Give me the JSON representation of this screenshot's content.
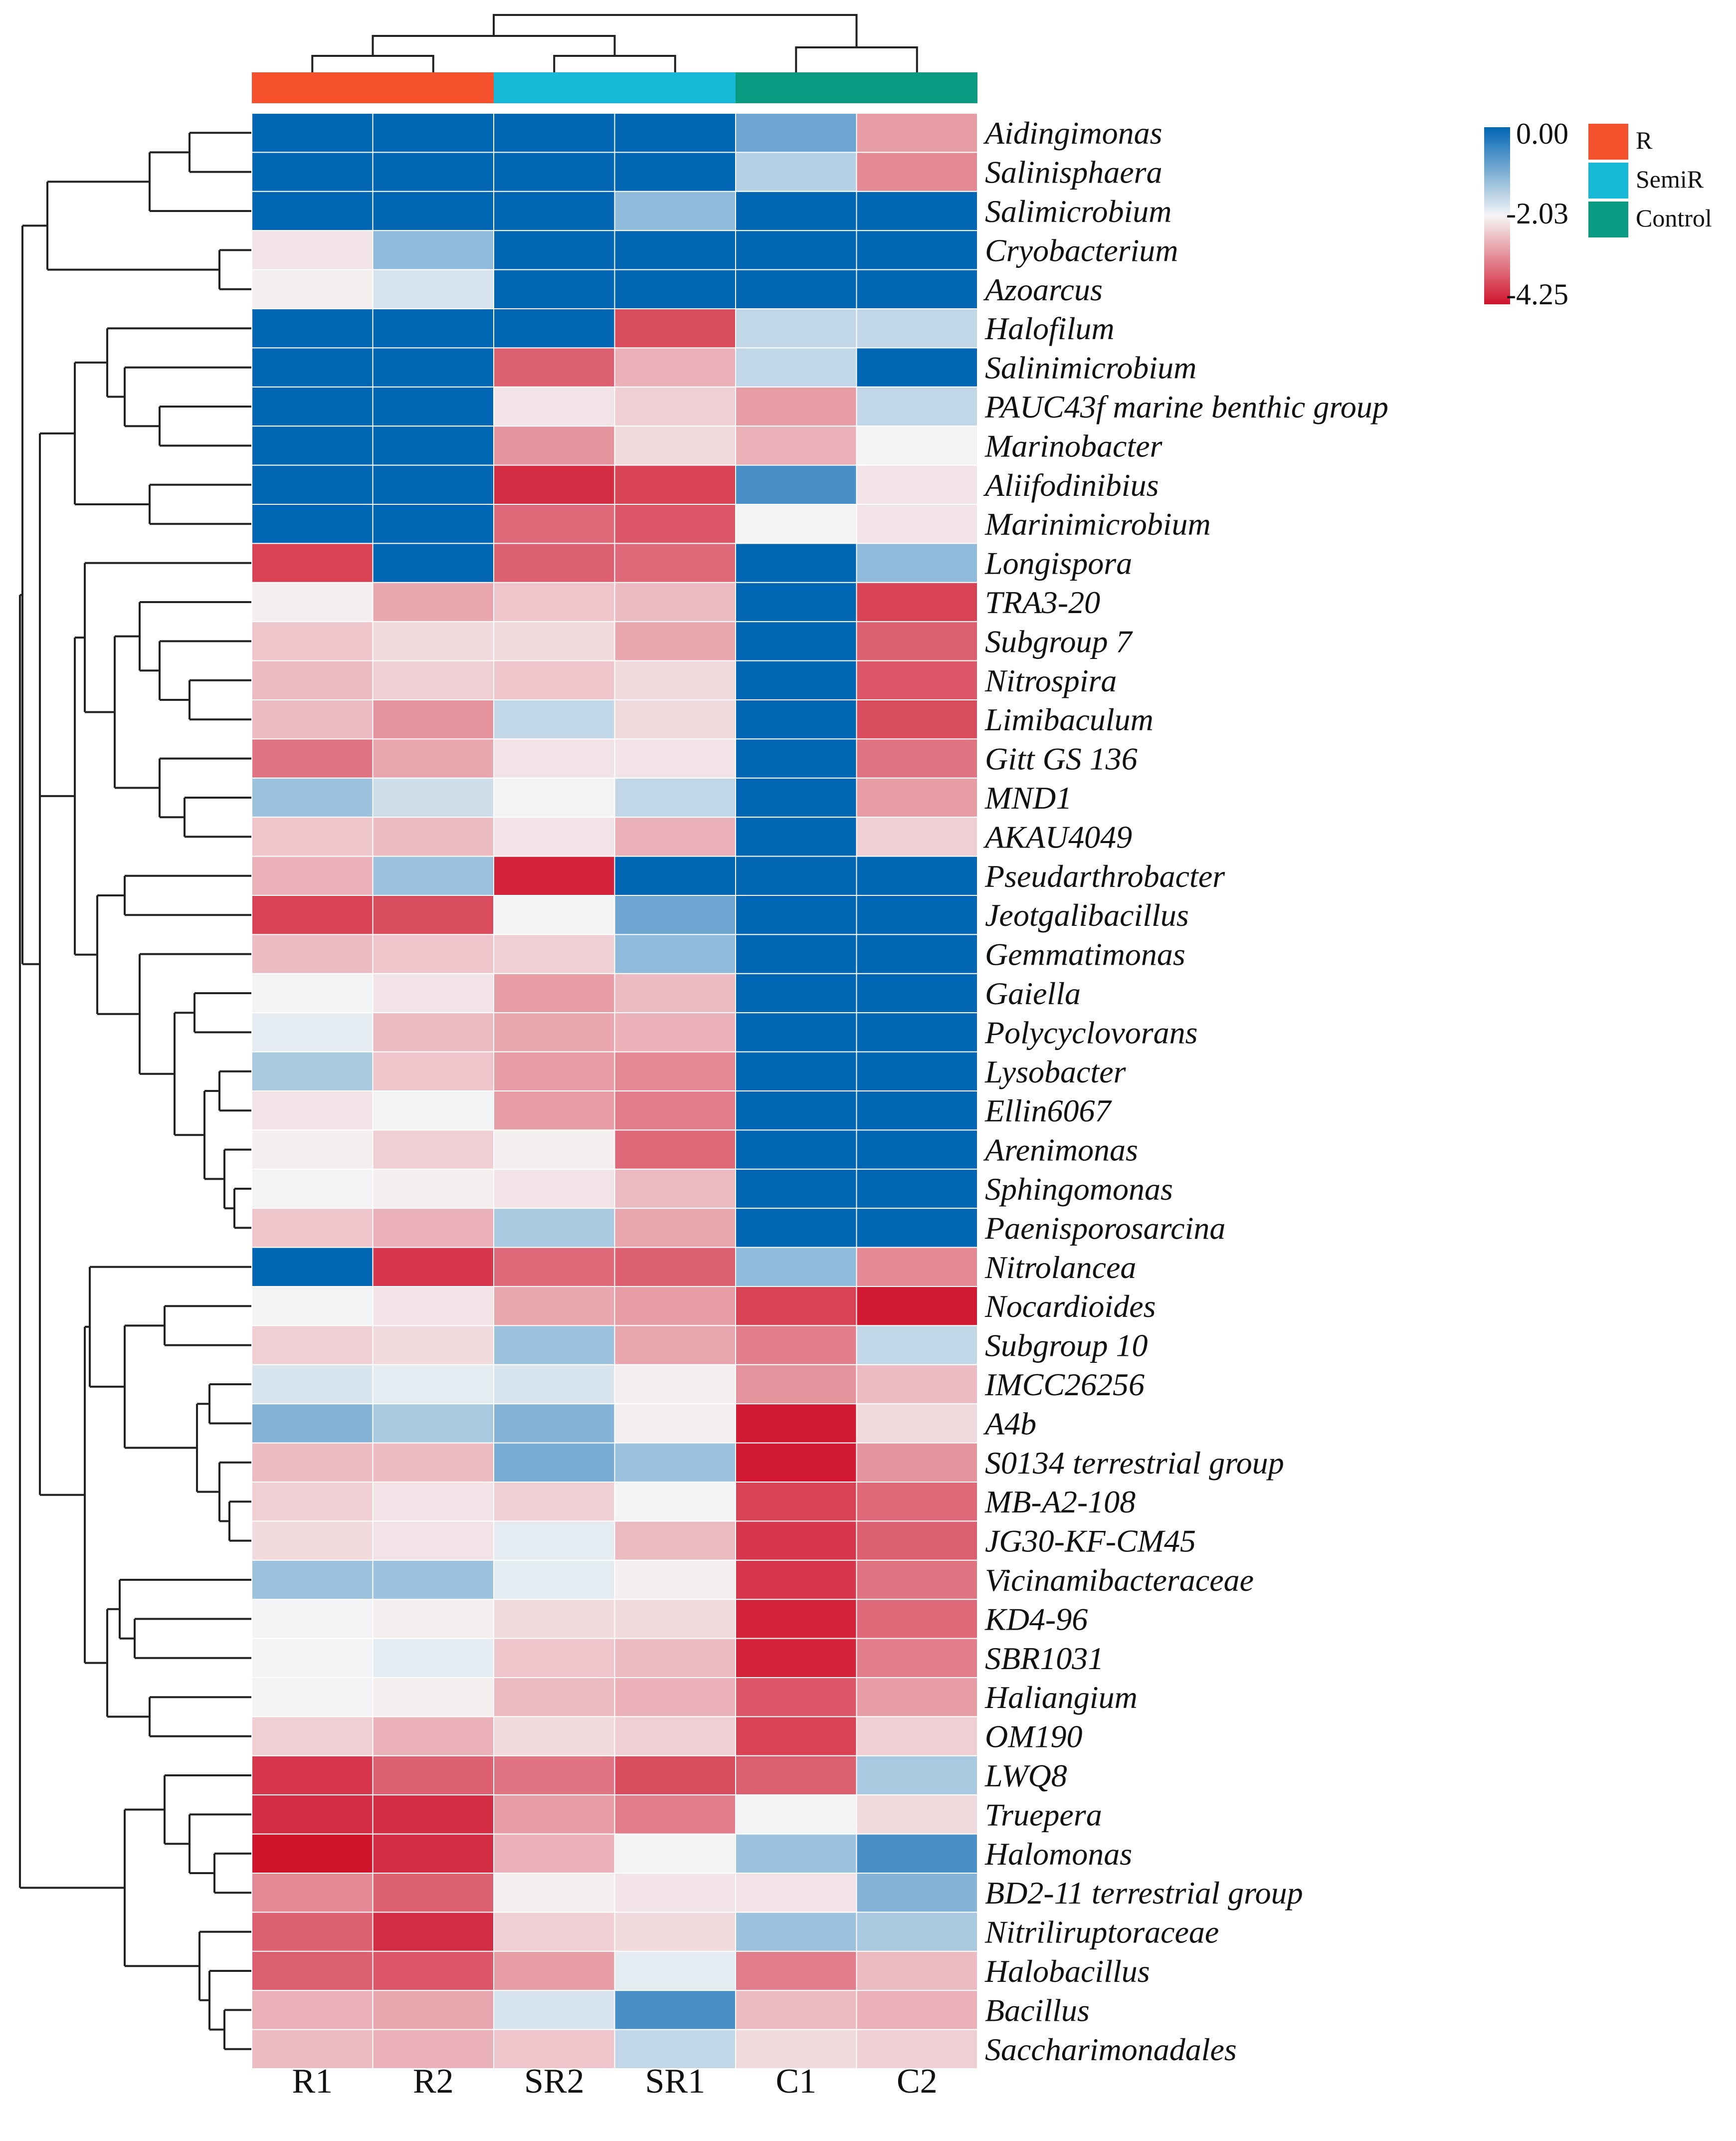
{
  "chart_data": {
    "type": "heatmap",
    "title": "",
    "columns": [
      "R1",
      "R2",
      "SR2",
      "SR1",
      "C1",
      "C2"
    ],
    "column_groups": [
      "R",
      "R",
      "SemiR",
      "SemiR",
      "Control",
      "Control"
    ],
    "groups": [
      {
        "name": "R",
        "color": "#f4512c"
      },
      {
        "name": "SemiR",
        "color": "#18b9d6"
      },
      {
        "name": "Control",
        "color": "#0a9a82"
      }
    ],
    "color_scale": {
      "min": -4.25,
      "mid": -2.03,
      "max": 0.0,
      "min_label": "-4.25",
      "mid_label": "-2.03",
      "max_label": "0.00",
      "min_color": "#d0142c",
      "mid_color": "#f5f5f5",
      "max_color": "#0066b3"
    },
    "rows": [
      {
        "name": "Aidingimonas",
        "values": [
          0.0,
          0.0,
          0.0,
          0.0,
          -0.9,
          -2.9
        ]
      },
      {
        "name": "Salinisphaera",
        "values": [
          0.0,
          0.0,
          0.0,
          0.0,
          -1.5,
          -3.1
        ]
      },
      {
        "name": "Salimicrobium",
        "values": [
          0.0,
          0.0,
          0.0,
          -1.2,
          0.0,
          0.0
        ]
      },
      {
        "name": "Cryobacterium",
        "values": [
          -2.2,
          -1.2,
          0.0,
          0.0,
          0.0,
          0.0
        ]
      },
      {
        "name": "Azoarcus",
        "values": [
          -2.1,
          -1.8,
          0.0,
          0.0,
          0.0,
          0.0
        ]
      },
      {
        "name": "Halofilum",
        "values": [
          0.0,
          0.0,
          0.0,
          -3.7,
          -1.6,
          -1.6
        ]
      },
      {
        "name": "Salinimicrobium",
        "values": [
          0.0,
          0.0,
          -3.5,
          -2.7,
          -1.6,
          0.0
        ]
      },
      {
        "name": "PAUC43f marine benthic group",
        "values": [
          0.0,
          0.0,
          -2.2,
          -2.4,
          -2.9,
          -1.6
        ]
      },
      {
        "name": "Marinobacter",
        "values": [
          0.0,
          0.0,
          -3.0,
          -2.3,
          -2.7,
          -2.0
        ]
      },
      {
        "name": "Aliifodinibius",
        "values": [
          0.0,
          0.0,
          -4.0,
          -3.8,
          -0.6,
          -2.2
        ]
      },
      {
        "name": "Marinimicrobium",
        "values": [
          0.0,
          0.0,
          -3.4,
          -3.6,
          -2.0,
          -2.2
        ]
      },
      {
        "name": "Longispora",
        "values": [
          -3.8,
          0.0,
          -3.5,
          -3.4,
          0.0,
          -1.2
        ]
      },
      {
        "name": "TRA3-20",
        "values": [
          -2.1,
          -2.8,
          -2.5,
          -2.6,
          0.0,
          -3.8
        ]
      },
      {
        "name": "Subgroup 7",
        "values": [
          -2.5,
          -2.3,
          -2.3,
          -2.8,
          0.0,
          -3.5
        ]
      },
      {
        "name": "Nitrospira",
        "values": [
          -2.6,
          -2.4,
          -2.5,
          -2.3,
          0.0,
          -3.6
        ]
      },
      {
        "name": "Limibaculum",
        "values": [
          -2.6,
          -3.0,
          -1.6,
          -2.3,
          0.0,
          -3.7
        ]
      },
      {
        "name": "Gitt GS 136",
        "values": [
          -3.3,
          -2.8,
          -2.2,
          -2.2,
          0.0,
          -3.3
        ]
      },
      {
        "name": "MND1",
        "values": [
          -1.3,
          -1.7,
          -2.0,
          -1.6,
          0.0,
          -2.9
        ]
      },
      {
        "name": "AKAU4049",
        "values": [
          -2.5,
          -2.6,
          -2.2,
          -2.7,
          0.0,
          -2.4
        ]
      },
      {
        "name": "Pseudarthrobacter",
        "values": [
          -2.7,
          -1.3,
          -4.1,
          0.0,
          0.0,
          0.0
        ]
      },
      {
        "name": "Jeotgalibacillus",
        "values": [
          -3.8,
          -3.7,
          -2.0,
          -0.9,
          0.0,
          0.0
        ]
      },
      {
        "name": "Gemmatimonas",
        "values": [
          -2.6,
          -2.5,
          -2.4,
          -1.2,
          0.0,
          0.0
        ]
      },
      {
        "name": "Gaiella",
        "values": [
          -2.0,
          -2.2,
          -2.9,
          -2.6,
          0.0,
          0.0
        ]
      },
      {
        "name": "Polycyclovorans",
        "values": [
          -1.9,
          -2.6,
          -2.8,
          -2.7,
          0.0,
          0.0
        ]
      },
      {
        "name": "Lysobacter",
        "values": [
          -1.4,
          -2.5,
          -2.9,
          -3.1,
          0.0,
          0.0
        ]
      },
      {
        "name": "Ellin6067",
        "values": [
          -2.2,
          -2.0,
          -2.9,
          -3.2,
          0.0,
          0.0
        ]
      },
      {
        "name": "Arenimonas",
        "values": [
          -2.1,
          -2.4,
          -2.1,
          -3.4,
          0.0,
          0.0
        ]
      },
      {
        "name": "Sphingomonas",
        "values": [
          -2.0,
          -2.1,
          -2.2,
          -2.6,
          0.0,
          0.0
        ]
      },
      {
        "name": "Paenisporosarcina",
        "values": [
          -2.5,
          -2.7,
          -1.4,
          -2.8,
          0.0,
          0.0
        ]
      },
      {
        "name": "Nitrolancea",
        "values": [
          0.0,
          -3.9,
          -3.4,
          -3.5,
          -1.2,
          -3.1
        ]
      },
      {
        "name": "Nocardioides",
        "values": [
          -2.0,
          -2.2,
          -2.8,
          -2.9,
          -3.8,
          -4.2
        ]
      },
      {
        "name": "Subgroup 10",
        "values": [
          -2.4,
          -2.3,
          -1.3,
          -2.8,
          -3.2,
          -1.6
        ]
      },
      {
        "name": "IMCC26256",
        "values": [
          -1.8,
          -1.9,
          -1.8,
          -2.1,
          -3.0,
          -2.6
        ]
      },
      {
        "name": "A4b",
        "values": [
          -1.1,
          -1.4,
          -1.1,
          -2.1,
          -4.2,
          -2.3
        ]
      },
      {
        "name": "S0134 terrestrial group",
        "values": [
          -2.6,
          -2.6,
          -1.0,
          -1.3,
          -4.2,
          -3.0
        ]
      },
      {
        "name": "MB-A2-108",
        "values": [
          -2.4,
          -2.2,
          -2.4,
          -2.0,
          -3.8,
          -3.4
        ]
      },
      {
        "name": "JG30-KF-CM45",
        "values": [
          -2.3,
          -2.2,
          -1.9,
          -2.6,
          -3.9,
          -3.5
        ]
      },
      {
        "name": "Vicinamibacteraceae",
        "values": [
          -1.3,
          -1.3,
          -1.9,
          -2.1,
          -3.9,
          -3.3
        ]
      },
      {
        "name": "KD4-96",
        "values": [
          -2.0,
          -2.1,
          -2.3,
          -2.3,
          -4.1,
          -3.4
        ]
      },
      {
        "name": "SBR1031",
        "values": [
          -2.0,
          -1.9,
          -2.5,
          -2.6,
          -4.1,
          -3.2
        ]
      },
      {
        "name": "Haliangium",
        "values": [
          -2.0,
          -2.1,
          -2.6,
          -2.7,
          -3.6,
          -2.9
        ]
      },
      {
        "name": "OM190",
        "values": [
          -2.4,
          -2.7,
          -2.3,
          -2.4,
          -3.8,
          -2.4
        ]
      },
      {
        "name": "LWQ8",
        "values": [
          -3.9,
          -3.5,
          -3.3,
          -3.7,
          -3.5,
          -1.4
        ]
      },
      {
        "name": "Truepera",
        "values": [
          -4.0,
          -4.0,
          -2.9,
          -3.2,
          -2.0,
          -2.3
        ]
      },
      {
        "name": "Halomonas",
        "values": [
          -4.25,
          -4.0,
          -2.7,
          -2.0,
          -1.3,
          -0.6
        ]
      },
      {
        "name": "BD2-11 terrestrial group",
        "values": [
          -3.1,
          -3.5,
          -2.1,
          -2.2,
          -2.2,
          -1.1
        ]
      },
      {
        "name": "Nitriliruptoraceae",
        "values": [
          -3.5,
          -4.0,
          -2.4,
          -2.3,
          -1.3,
          -1.4
        ]
      },
      {
        "name": "Halobacillus",
        "values": [
          -3.5,
          -3.6,
          -2.9,
          -1.9,
          -3.2,
          -2.6
        ]
      },
      {
        "name": "Bacillus",
        "values": [
          -2.7,
          -2.8,
          -1.8,
          -0.6,
          -2.6,
          -2.7
        ]
      },
      {
        "name": "Saccharimonadales",
        "values": [
          -2.6,
          -2.7,
          -2.5,
          -1.6,
          -2.3,
          -2.4
        ]
      }
    ]
  }
}
